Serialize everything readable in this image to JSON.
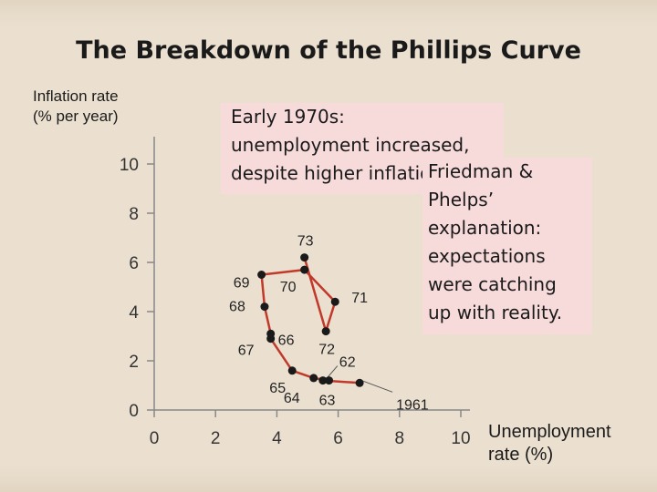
{
  "title": "The Breakdown of the Phillips Curve",
  "chart_data": {
    "type": "line",
    "ylabel": "Inflation rate\n(% per year)",
    "xlabel": "Unemployment\nrate (%)",
    "xlim": [
      0,
      10
    ],
    "ylim": [
      0,
      10
    ],
    "x_ticks": [
      "0",
      "2",
      "4",
      "6",
      "8",
      "10"
    ],
    "y_ticks": [
      "0",
      "2",
      "4",
      "6",
      "8",
      "10"
    ],
    "grid": false,
    "series": [
      {
        "color": "#c0392b",
        "marker_color": "#1a1a1a",
        "points": [
          {
            "label": "1961",
            "x": 6.7,
            "y": 1.1
          },
          {
            "label": "62",
            "x": 5.5,
            "y": 1.2
          },
          {
            "label": "63",
            "x": 5.7,
            "y": 1.2
          },
          {
            "label": "64",
            "x": 5.2,
            "y": 1.3
          },
          {
            "label": "65",
            "x": 4.5,
            "y": 1.6
          },
          {
            "label": "66",
            "x": 3.8,
            "y": 2.9
          },
          {
            "label": "67",
            "x": 3.8,
            "y": 3.1
          },
          {
            "label": "68",
            "x": 3.6,
            "y": 4.2
          },
          {
            "label": "69",
            "x": 3.5,
            "y": 5.5
          },
          {
            "label": "70",
            "x": 4.9,
            "y": 5.7
          },
          {
            "label": "71",
            "x": 5.9,
            "y": 4.4
          },
          {
            "label": "72",
            "x": 5.6,
            "y": 3.2
          },
          {
            "label": "73",
            "x": 4.9,
            "y": 6.2
          }
        ]
      }
    ],
    "annotations": [
      {
        "name": "early-1970s-note",
        "lines": [
          "Early 1970s:",
          "unemployment increased,",
          "despite higher inflation."
        ]
      },
      {
        "name": "friedman-phelps-note",
        "lines": [
          "Friedman &",
          "Phelps’",
          "explanation:",
          "expectations",
          "were catching",
          "up with reality."
        ]
      }
    ]
  }
}
